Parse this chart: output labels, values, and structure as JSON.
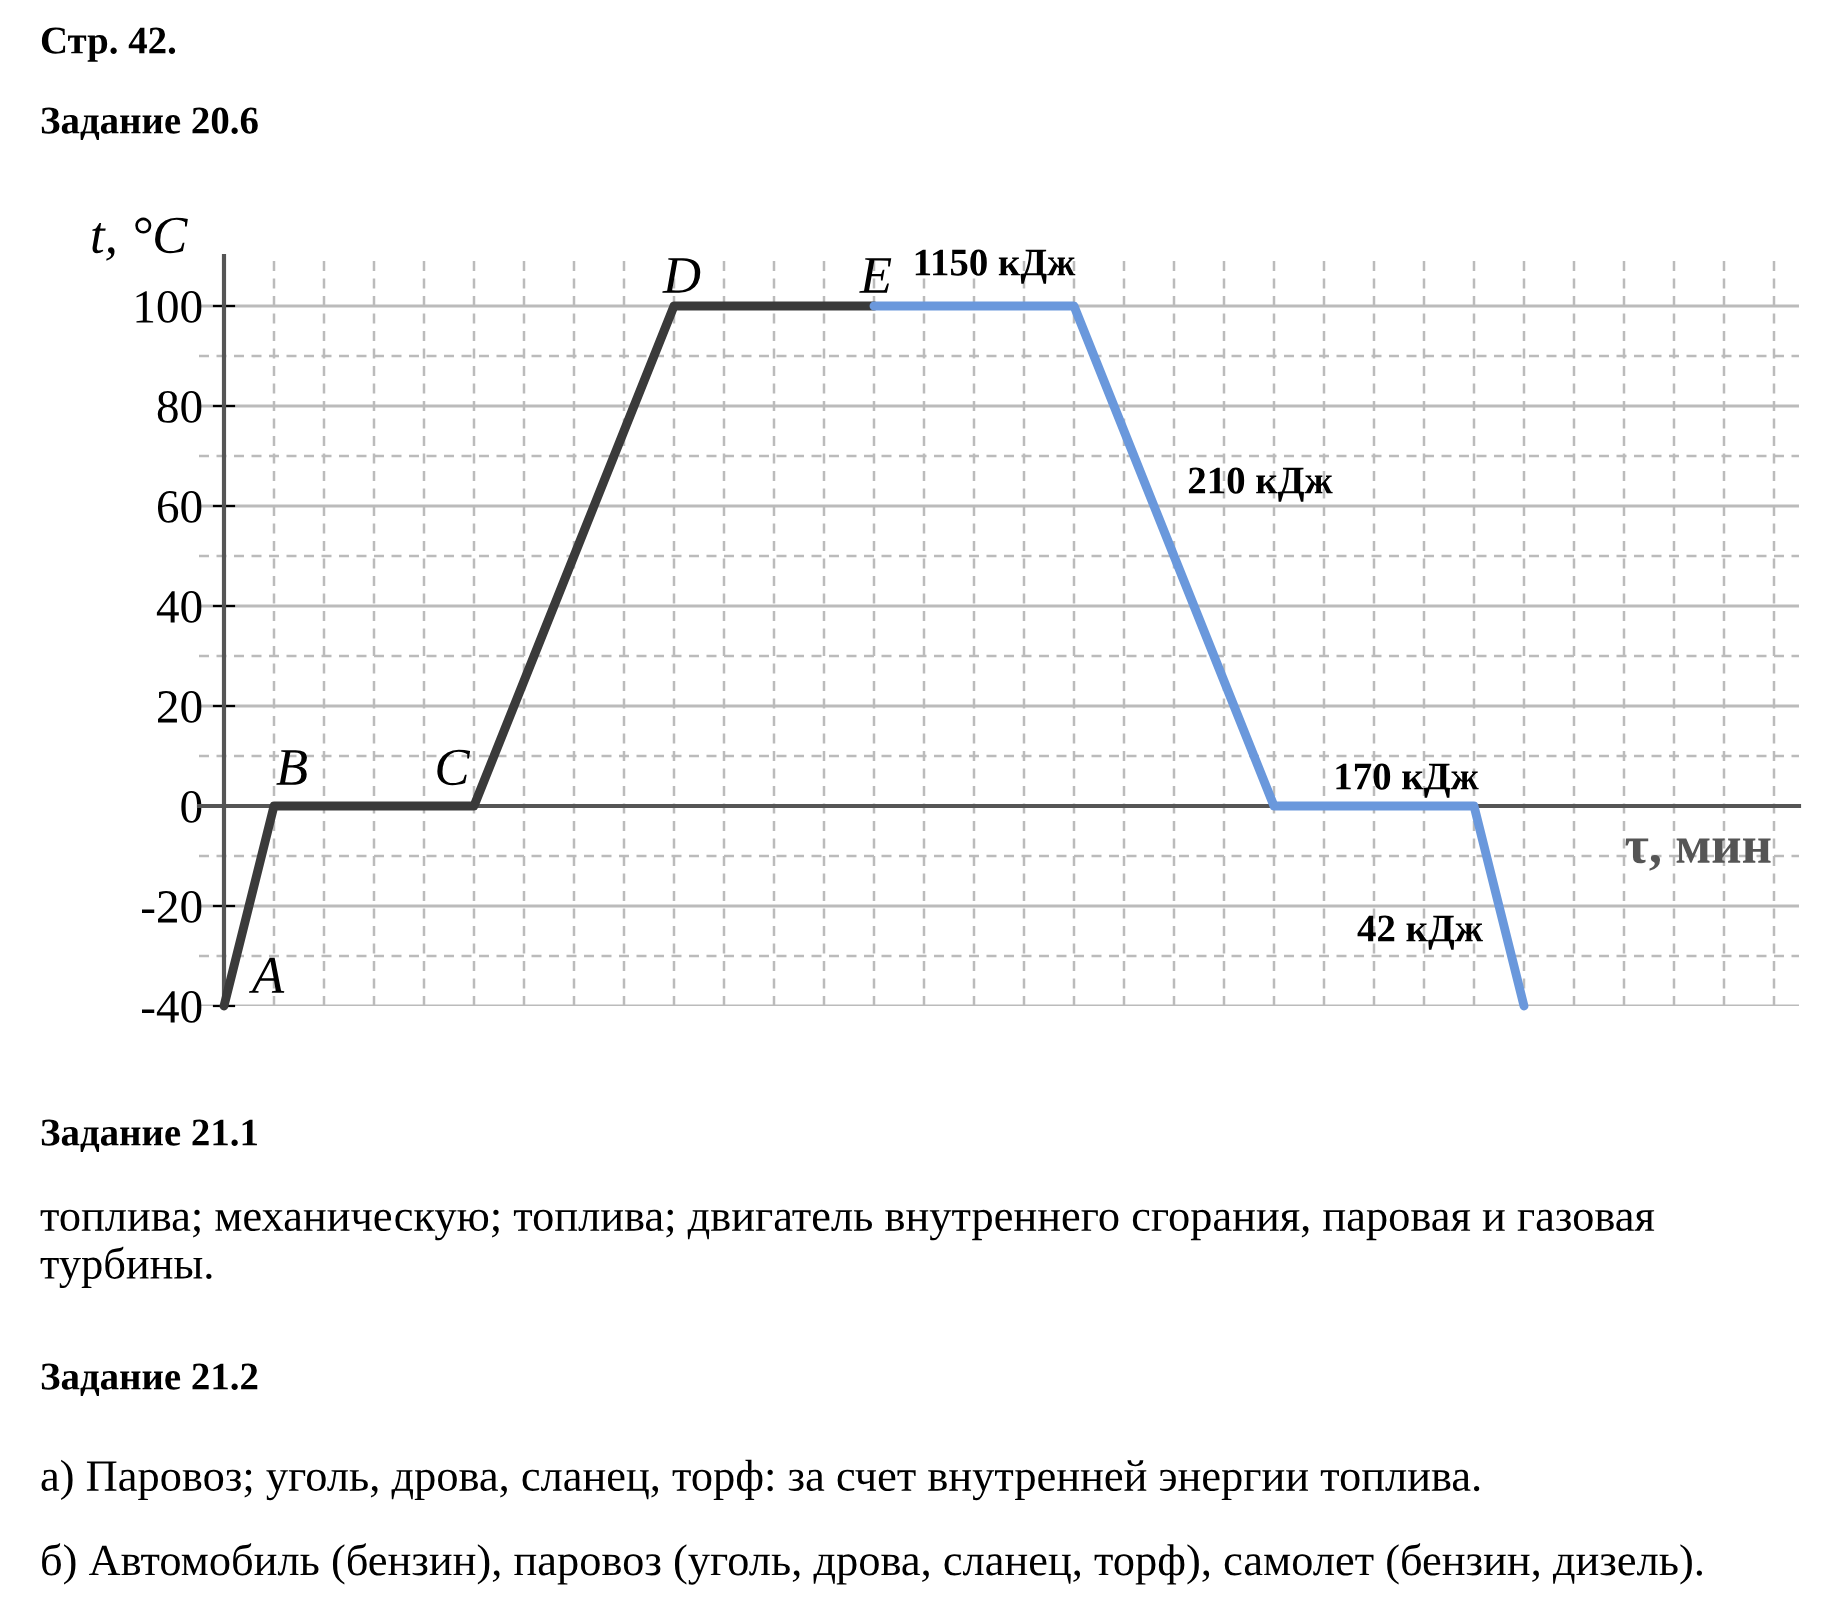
{
  "chart_data": {
    "type": "line",
    "title": "Стр. 42.",
    "subtitle": "Задание 20.6",
    "xlabel": "τ, мин",
    "ylabel": "t, °C",
    "categories": [
      null,
      null,
      null,
      null,
      null,
      null,
      null,
      null,
      null,
      null,
      null,
      null,
      null,
      null,
      null,
      null,
      null,
      null,
      null,
      null,
      null,
      null,
      null,
      null,
      null,
      null,
      null,
      null,
      null,
      null,
      null,
      null
    ],
    "series": [
      {
        "color": "#3a3a3a",
        "values": [
          -40,
          0,
          0,
          0,
          0,
          0,
          25,
          50,
          75,
          100,
          100,
          100,
          100,
          100,
          null,
          null,
          null,
          null,
          null,
          null,
          null,
          null,
          null,
          null,
          null,
          null,
          null,
          null,
          null,
          null,
          null,
          null
        ]
      },
      {
        "color": "#6a98dc",
        "values": [
          null,
          null,
          null,
          null,
          null,
          null,
          null,
          null,
          null,
          null,
          null,
          null,
          null,
          100,
          100,
          100,
          100,
          100,
          75,
          50,
          25,
          0,
          0,
          0,
          0,
          0,
          -40,
          null,
          null,
          null,
          null,
          null
        ]
      }
    ],
    "ylim": [
      -40,
      110
    ],
    "yticks": [
      -40,
      -20,
      0,
      20,
      40,
      60,
      80,
      100
    ],
    "grid": true,
    "line_style": "solid",
    "annotations": [
      "A",
      "B",
      "C",
      "D",
      "E",
      "1150 кДж",
      "210 кДж",
      "170 кДж",
      "42 кДж",
      "Задание 21.1",
      "топлива; механическую; топлива; двигатель внутреннего сгорания, паровая и газовая турбины.",
      "Задание 21.2",
      "а) Паровоз; уголь, дрова, сланец, торф: за счет внутренней энергии топлива.",
      "б) Автомобиль (бензин), паровоз (уголь, дрова, сланец, торф), самолет (бензин, дизель)."
    ]
  }
}
